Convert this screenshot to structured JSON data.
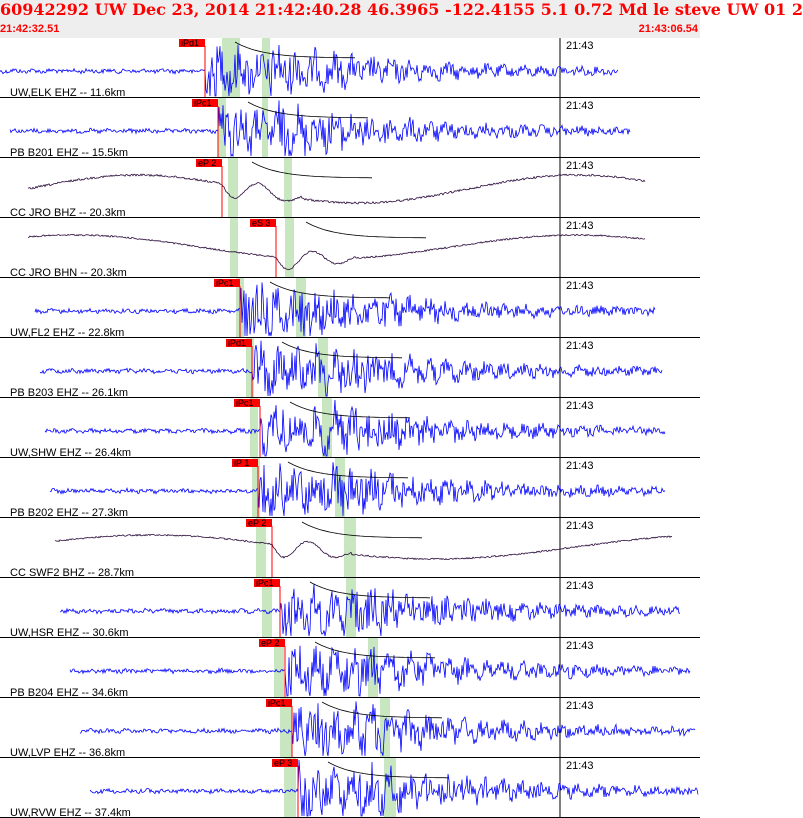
{
  "header": {
    "title": "60942292 UW Dec 23, 2014 21:42:40.28   46.3965 -122.4155  5.1 0.72 Md le steve UW 01   2",
    "start_time": "21:42:32.51",
    "end_time": "21:43:06.54"
  },
  "colors": {
    "header_text": "#ff0000",
    "header_bg": "#eeeeee",
    "short_period_trace": "#0000ff",
    "broadband_trace": "#2a0a3a",
    "pick_marker": "#ff0000",
    "s_window": "#c8e6c0",
    "grid": "#000000"
  },
  "time_tick_label": "21:43",
  "traces": [
    {
      "label": "UW,ELK EHZ -- 11.6km",
      "pick": "iPd1",
      "color": "blue"
    },
    {
      "label": "PB B201 EHZ -- 15.5km",
      "pick": "iPc1",
      "color": "blue"
    },
    {
      "label": "CC JRO BHZ -- 20.3km",
      "pick": "eP 2",
      "color": "dark"
    },
    {
      "label": "CC JRO BHN -- 20.3km",
      "pick": "eS 3",
      "color": "dark"
    },
    {
      "label": "UW,FL2 EHZ -- 22.8km",
      "pick": "iPc1",
      "color": "blue"
    },
    {
      "label": "PB B203 EHZ -- 26.1km",
      "pick": "iPd1",
      "color": "blue"
    },
    {
      "label": "UW,SHW EHZ -- 26.4km",
      "pick": "iPc1",
      "color": "blue"
    },
    {
      "label": "PB B202 EHZ -- 27.3km",
      "pick": "iP 1",
      "color": "blue"
    },
    {
      "label": "CC SWF2 BHZ -- 28.7km",
      "pick": "eP 2",
      "color": "dark"
    },
    {
      "label": "UW,HSR EHZ -- 30.6km",
      "pick": "iPc1",
      "color": "blue"
    },
    {
      "label": "PB B204 EHZ -- 34.6km",
      "pick": "eP 2",
      "color": "blue"
    },
    {
      "label": "UW,LVP EHZ -- 36.8km",
      "pick": "iPc1",
      "color": "blue"
    },
    {
      "label": "UW,RVW EHZ -- 37.4km",
      "pick": "eP 3",
      "color": "blue"
    }
  ]
}
